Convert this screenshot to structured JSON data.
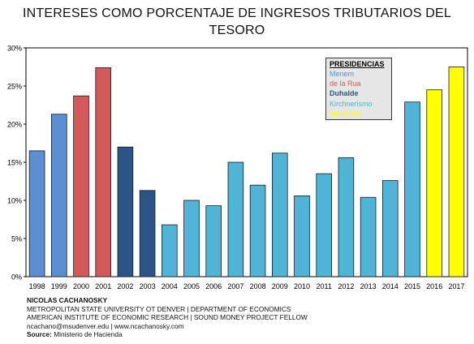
{
  "title_line1": "INTERESES COMO PORCENTAJE DE INGRESOS TRIBUTARIOS DEL",
  "title_line2": "TESORO",
  "chart_data": {
    "type": "bar",
    "categories": [
      "1998",
      "1999",
      "2000",
      "2001",
      "2002",
      "2003",
      "2004",
      "2005",
      "2006",
      "2007",
      "2008",
      "2009",
      "2010",
      "2011",
      "2012",
      "2013",
      "2014",
      "2015",
      "2016",
      "2017"
    ],
    "values": [
      16.5,
      21.3,
      23.7,
      27.4,
      17.0,
      11.3,
      6.8,
      10.0,
      9.3,
      15.0,
      12.0,
      16.2,
      10.6,
      13.5,
      15.6,
      10.4,
      12.6,
      22.9,
      24.5,
      27.5
    ],
    "bar_colors": [
      "#5b8fd1",
      "#5b8fd1",
      "#d35a5a",
      "#d35a5a",
      "#2b5589",
      "#2b5589",
      "#4fb4d6",
      "#4fb4d6",
      "#4fb4d6",
      "#4fb4d6",
      "#4fb4d6",
      "#4fb4d6",
      "#4fb4d6",
      "#4fb4d6",
      "#4fb4d6",
      "#4fb4d6",
      "#4fb4d6",
      "#4fb4d6",
      "#ffff00",
      "#ffff00"
    ],
    "ylim": [
      0,
      30
    ],
    "yticks": [
      0,
      5,
      10,
      15,
      20,
      25,
      30
    ],
    "ytick_labels": [
      "0%",
      "5%",
      "10%",
      "15%",
      "20%",
      "25%",
      "30%"
    ],
    "grid": false,
    "legend": {
      "title": "PRESIDENCIAS",
      "placement": "top-right",
      "items": [
        {
          "label": "Menem",
          "color": "#5b8fd1"
        },
        {
          "label": "de la Rua",
          "color": "#d35a5a"
        },
        {
          "label": "Duhalde",
          "color": "#2b5589"
        },
        {
          "label": "Kirchnerismo",
          "color": "#4fb4d6"
        },
        {
          "label": "Macrismo",
          "color": "#ffff00"
        }
      ]
    }
  },
  "footer": {
    "author": "NICOLAS CACHANOSKY",
    "line2": "METROPOLITAN STATE UNIVERSITY OT DENVER | DEPARTMENT OF ECONOMICS",
    "line3": "AMERICAN INSTITUTE OF ECONOMIC RESEARCH | SOUND MONEY PROJECT FELLOW",
    "line4": "ncachano@msudenver.edu  |  www.ncachanosky.com",
    "source_label": "Source:",
    "source_value": " Ministerio de Hacienda"
  }
}
